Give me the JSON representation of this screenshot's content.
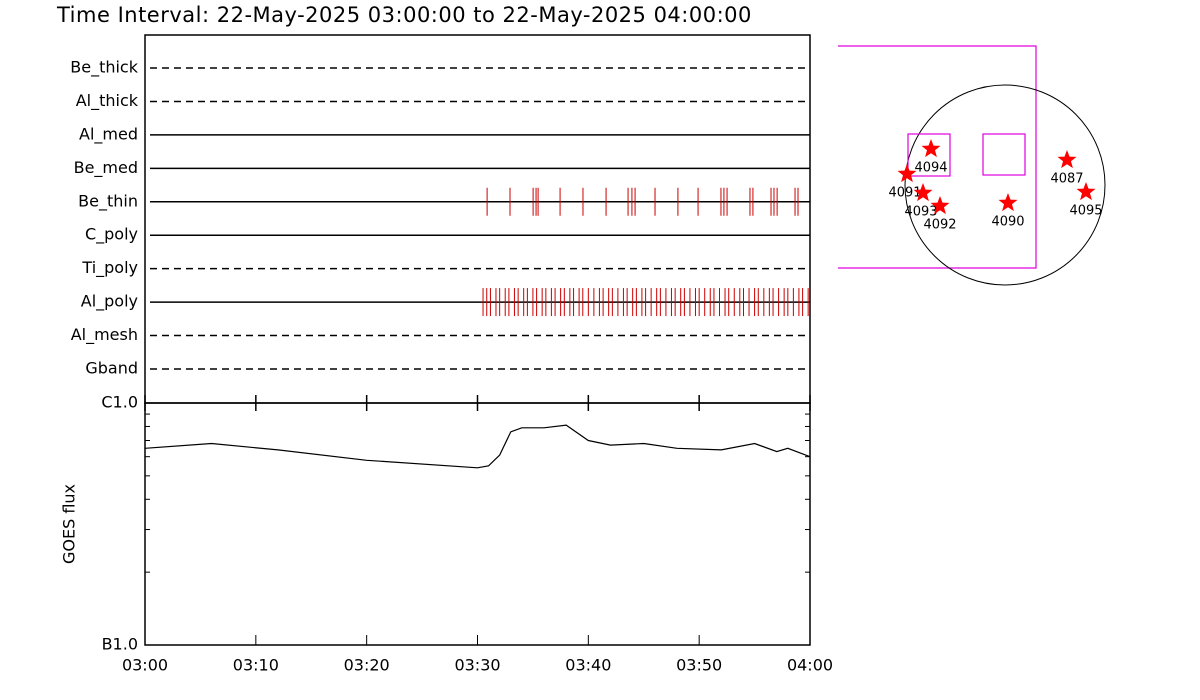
{
  "title": "Time Interval: 22-May-2025 03:00:00 to 22-May-2025 04:00:00",
  "chart_data": [
    {
      "type": "event",
      "xlim": [
        "03:00",
        "04:00"
      ],
      "event_color": "#cc0000",
      "series": [
        {
          "name": "Be_thick",
          "style": "dashed",
          "values": []
        },
        {
          "name": "Al_thick",
          "style": "dashed",
          "values": []
        },
        {
          "name": "Al_med",
          "style": "solid",
          "values": []
        },
        {
          "name": "Be_med",
          "style": "solid",
          "values": []
        },
        {
          "name": "Be_thin",
          "style": "solid",
          "values": [
            "03:30:52",
            "03:32:56",
            "03:35:01",
            "03:35:17",
            "03:35:28",
            "03:37:27",
            "03:39:31",
            "03:41:36",
            "03:43:35",
            "03:43:56",
            "03:44:13",
            "03:46:01",
            "03:48:05",
            "03:49:54",
            "03:51:58",
            "03:52:14",
            "03:52:31",
            "03:54:35",
            "03:54:51",
            "03:56:29",
            "03:56:45",
            "03:57:02",
            "03:58:39",
            "03:58:55"
          ]
        },
        {
          "name": "C_poly",
          "style": "solid",
          "values": []
        },
        {
          "name": "Ti_poly",
          "style": "dashed",
          "values": []
        },
        {
          "name": "Al_poly",
          "style": "solid",
          "values": [
            "03:30:30",
            "03:30:50",
            "03:31:10",
            "03:31:40",
            "03:32:00",
            "03:32:30",
            "03:32:50",
            "03:33:20",
            "03:33:40",
            "03:34:10",
            "03:34:30",
            "03:35:00",
            "03:35:20",
            "03:35:50",
            "03:36:10",
            "03:36:40",
            "03:37:00",
            "03:37:30",
            "03:37:50",
            "03:38:20",
            "03:38:40",
            "03:39:10",
            "03:39:30",
            "03:40:00",
            "03:40:30",
            "03:41:00",
            "03:41:20",
            "03:41:50",
            "03:42:10",
            "03:42:40",
            "03:43:10",
            "03:43:30",
            "03:44:00",
            "03:44:20",
            "03:44:50",
            "03:45:10",
            "03:45:40",
            "03:46:10",
            "03:46:30",
            "03:47:00",
            "03:47:30",
            "03:47:50",
            "03:48:20",
            "03:48:40",
            "03:49:10",
            "03:49:40",
            "03:50:00",
            "03:50:30",
            "03:51:00",
            "03:51:20",
            "03:51:50",
            "03:52:20",
            "03:52:40",
            "03:53:10",
            "03:53:40",
            "03:54:00",
            "03:54:30",
            "03:55:00",
            "03:55:20",
            "03:55:50",
            "03:56:20",
            "03:56:40",
            "03:57:10",
            "03:57:40",
            "03:58:00",
            "03:58:30",
            "03:59:00",
            "03:59:20",
            "03:59:50"
          ]
        },
        {
          "name": "Al_mesh",
          "style": "dashed",
          "values": []
        },
        {
          "name": "Gband",
          "style": "dashed",
          "values": []
        }
      ]
    },
    {
      "type": "line",
      "y_label": "GOES flux",
      "log_y": true,
      "color": "#000000",
      "xlim": [
        "03:00",
        "04:00"
      ],
      "xticks": [
        "03:00",
        "03:10",
        "03:20",
        "03:30",
        "03:40",
        "03:50",
        "04:00"
      ],
      "ylim": [
        1e-07,
        1e-06
      ],
      "yticks": [
        {
          "value": 1e-07,
          "label": "B1.0"
        },
        {
          "value": 1e-06,
          "label": "C1.0"
        }
      ],
      "yminorticks": [
        2e-07,
        3e-07,
        4e-07,
        5e-07,
        6e-07,
        7e-07,
        8e-07,
        9e-07
      ],
      "x": [
        "03:00",
        "03:06",
        "03:12",
        "03:20",
        "03:30",
        "03:31",
        "03:32",
        "03:33",
        "03:34",
        "03:36",
        "03:38",
        "03:40",
        "03:42",
        "03:45",
        "03:48",
        "03:52",
        "03:55",
        "03:57",
        "03:58",
        "04:00"
      ],
      "values": [
        6.5e-07,
        6.8e-07,
        6.4e-07,
        5.8e-07,
        5.4e-07,
        5.5e-07,
        6.1e-07,
        7.6e-07,
        7.9e-07,
        7.9e-07,
        8.1e-07,
        7e-07,
        6.7e-07,
        6.8e-07,
        6.5e-07,
        6.4e-07,
        6.8e-07,
        6.3e-07,
        6.5e-07,
        6e-07
      ]
    }
  ],
  "map": {
    "regions": [
      {
        "label": "4094"
      },
      {
        "label": "4091"
      },
      {
        "label": "4093"
      },
      {
        "label": "4092"
      },
      {
        "label": "4090"
      },
      {
        "label": "4087"
      },
      {
        "label": "4095"
      }
    ]
  }
}
